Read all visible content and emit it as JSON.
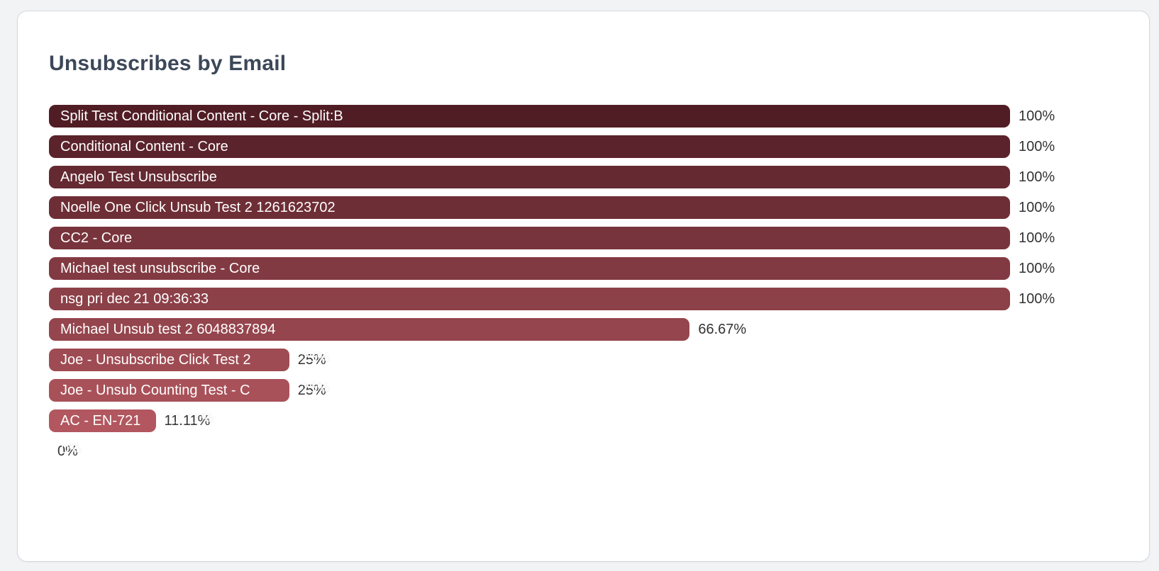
{
  "page": {
    "background": "#f2f3f5"
  },
  "card": {
    "background": "#ffffff",
    "border_color": "#d4d8de"
  },
  "title": "Unsubscribes by Email",
  "title_color": "#3c4858",
  "chart_data": {
    "type": "bar",
    "orientation": "horizontal",
    "title": "Unsubscribes by Email",
    "xlabel": "",
    "ylabel": "",
    "unit": "%",
    "xlim": [
      0,
      100
    ],
    "grid": false,
    "legend": false,
    "value_labels_position": "right-of-bar",
    "bars": [
      {
        "label": "Split Test Conditional Content - Core - Split:B",
        "value": 100,
        "pct_label": "100%",
        "color": "#511d25"
      },
      {
        "label": "Conditional Content - Core",
        "value": 100,
        "pct_label": "100%",
        "color": "#5b232b"
      },
      {
        "label": "Angelo Test Unsubscribe",
        "value": 100,
        "pct_label": "100%",
        "color": "#642931"
      },
      {
        "label": "Noelle One Click Unsub Test 2 1261623702",
        "value": 100,
        "pct_label": "100%",
        "color": "#6e2e36"
      },
      {
        "label": "CC2 - Core",
        "value": 100,
        "pct_label": "100%",
        "color": "#78343c"
      },
      {
        "label": "Michael test unsubscribe - Core",
        "value": 100,
        "pct_label": "100%",
        "color": "#823a42"
      },
      {
        "label": "nsg pri dec 21 09:36:33",
        "value": 100,
        "pct_label": "100%",
        "color": "#8c4048"
      },
      {
        "label": "Michael Unsub test 2 6048837894",
        "value": 66.67,
        "pct_label": "66.67%",
        "color": "#95454d"
      },
      {
        "label": "Joe - Unsubscribe Click Test 2",
        "value": 25,
        "pct_label": "25%",
        "color": "#9f4b53",
        "ghost_text": "25%"
      },
      {
        "label": "Joe - Unsub Counting Test - C",
        "value": 25,
        "pct_label": "25%",
        "color": "#a95159",
        "ghost_text": "25%"
      },
      {
        "label": "AC - EN-721",
        "value": 11.11,
        "pct_label": "11.11%",
        "color": "#b2575f",
        "ghost_text": "11.11%"
      },
      {
        "label": "",
        "value": 0,
        "pct_label": "0%",
        "color": "#bc5c66",
        "ghost_text": "0%"
      }
    ]
  }
}
